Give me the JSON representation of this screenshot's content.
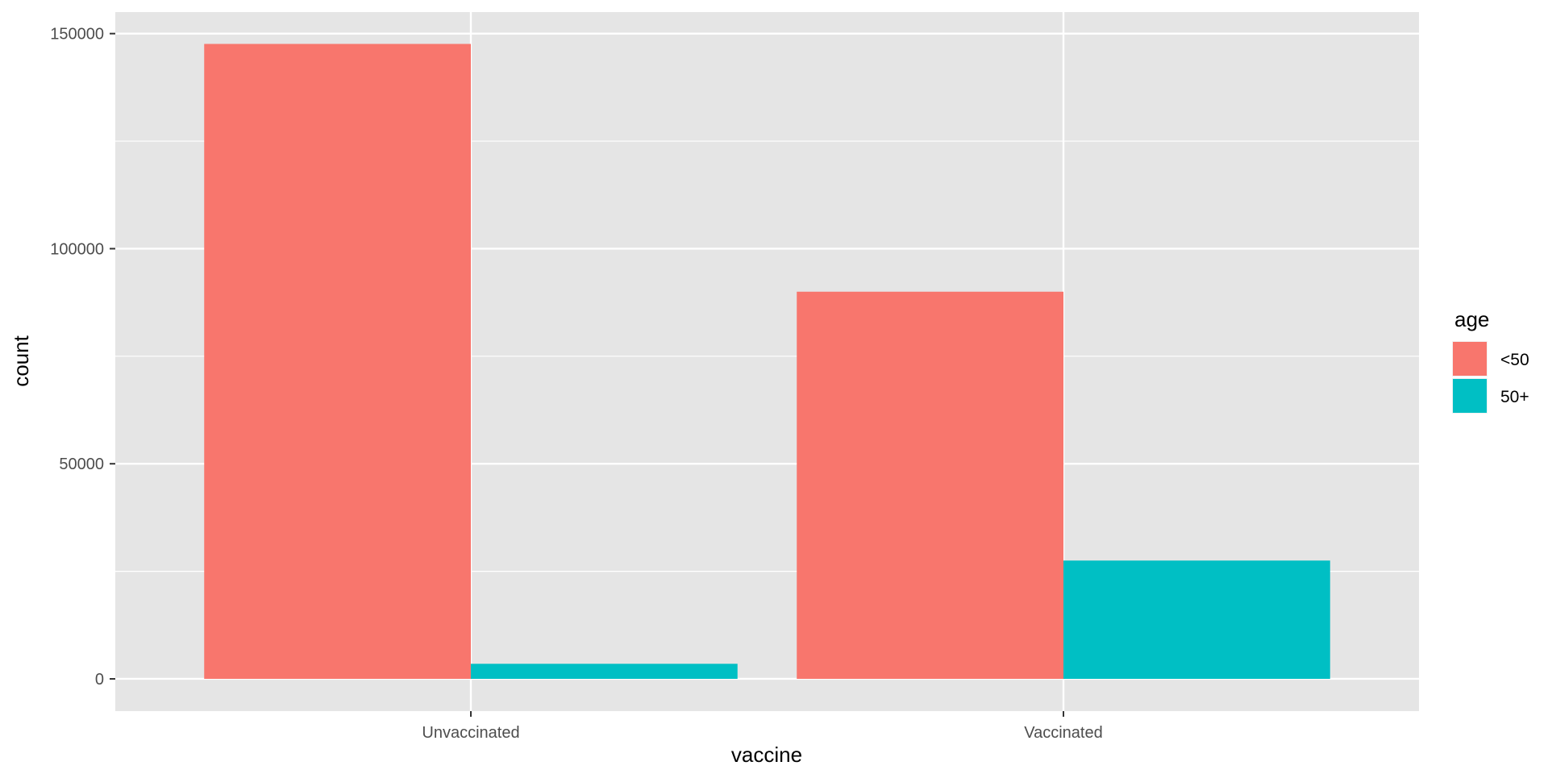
{
  "chart_data": {
    "type": "bar",
    "layout": "dodge",
    "categories": [
      "Unvaccinated",
      "Vaccinated"
    ],
    "series": [
      {
        "name": "<50",
        "color": "#F8766D",
        "values": [
          147600,
          90000
        ]
      },
      {
        "name": "50+",
        "color": "#00BFC4",
        "values": [
          3500,
          27500
        ]
      }
    ],
    "title": "",
    "xlabel": "vaccine",
    "ylabel": "count",
    "ylim": [
      -7500,
      155000
    ],
    "yticks": [
      0,
      50000,
      100000,
      150000
    ],
    "ytick_labels": [
      "0",
      "50000",
      "100000",
      "150000"
    ],
    "grid": true,
    "legend": {
      "title": "age",
      "position": "right"
    },
    "colors": {
      "panel_background": "#E5E5E5",
      "grid": "#FFFFFF",
      "bar_fill_1": "#F8766D",
      "bar_fill_2": "#00BFC4"
    }
  }
}
